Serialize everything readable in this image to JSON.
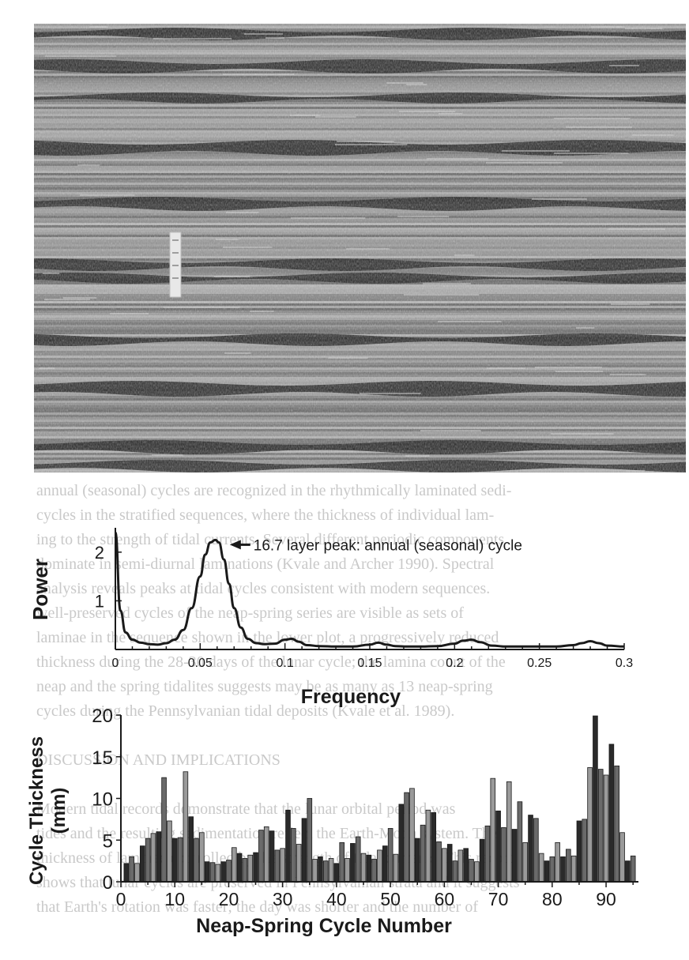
{
  "photo": {
    "description_icon": "laminated-rock-outcrop-photo"
  },
  "background_text": [
    "annual (seasonal) cycles are recognized in the rhythmically laminated sedi-",
    "cycles in the stratified sequences, where the thickness of individual lam-",
    "ing to the strength of tidal currents. Several different periodic components",
    "dominate in semi-diurnal laminations (Kvale and Archer 1990). Spectral",
    "analysis reveals peaks at tidal cycles consistent with modern sequences.",
    "well-preserved cycles of the neap-spring series are visible as sets of",
    "laminae in the sequence shown in the lower plot, a progressively reduced",
    "thickness during the 28-30 days of the lunar cycle; the lamina count of the",
    "neap and the spring tidalites suggests may be as many as 13 neap-spring",
    "cycles during the Pennsylvanian tidal deposits (Kvale et al. 1989).",
    "",
    "DISCUSSION AND IMPLICATIONS",
    "",
    "Modern tidal records demonstrate that the lunar orbital period was",
    "tides and the resulting sedimentation reflect the Earth-Moon system. The",
    "thickness of laminae controlled by the strength of tidal currents. This record",
    "shows that lunar cycles are preserved in Pennsylvanian strata and it suggests",
    "that Earth's rotation was faster; the day was shorter and the number of"
  ],
  "chart_data": [
    {
      "type": "line",
      "title": "",
      "annotation": "16.7 layer peak: annual (seasonal) cycle",
      "annotation_x": 0.06,
      "xlabel": "Frequency",
      "ylabel": "Power",
      "xlim": [
        0,
        0.3
      ],
      "ylim": [
        0,
        2.5
      ],
      "x_ticks": [
        0,
        0.05,
        0.1,
        0.15,
        0.2,
        0.25,
        0.3
      ],
      "x_tick_labels": [
        "0",
        "0.05",
        "0.1",
        "0.15",
        "0.2",
        "0.25",
        "0.3"
      ],
      "y_ticks": [
        1,
        2
      ],
      "y_tick_labels": [
        "1",
        "2"
      ],
      "grid": false,
      "x": [
        0,
        0.003,
        0.006,
        0.01,
        0.015,
        0.02,
        0.025,
        0.03,
        0.035,
        0.04,
        0.045,
        0.05,
        0.053,
        0.056,
        0.059,
        0.061,
        0.064,
        0.067,
        0.07,
        0.074,
        0.078,
        0.083,
        0.088,
        0.094,
        0.1,
        0.104,
        0.108,
        0.113,
        0.12,
        0.13,
        0.14,
        0.15,
        0.155,
        0.16,
        0.165,
        0.172,
        0.18,
        0.19,
        0.2,
        0.205,
        0.21,
        0.215,
        0.222,
        0.23,
        0.24,
        0.25,
        0.26,
        0.27,
        0.275,
        0.28,
        0.285,
        0.29,
        0.3
      ],
      "y": [
        2.4,
        0.8,
        0.35,
        0.2,
        0.14,
        0.11,
        0.1,
        0.13,
        0.2,
        0.4,
        0.85,
        1.5,
        1.95,
        2.2,
        2.25,
        2.2,
        1.85,
        1.35,
        0.85,
        0.45,
        0.22,
        0.13,
        0.11,
        0.12,
        0.2,
        0.22,
        0.16,
        0.09,
        0.07,
        0.06,
        0.06,
        0.1,
        0.14,
        0.1,
        0.07,
        0.06,
        0.06,
        0.07,
        0.12,
        0.18,
        0.2,
        0.15,
        0.08,
        0.06,
        0.06,
        0.06,
        0.06,
        0.09,
        0.13,
        0.17,
        0.13,
        0.08,
        0.06
      ]
    },
    {
      "type": "bar",
      "title": "",
      "xlabel": "Neap-Spring Cycle Number",
      "ylabel": "Cycle Thickness (mm)",
      "ylabel_lines": [
        "Cycle Thickness",
        "(mm)"
      ],
      "xlim": [
        0,
        96
      ],
      "ylim": [
        0,
        20
      ],
      "x_ticks": [
        0,
        10,
        20,
        30,
        40,
        50,
        60,
        70,
        80,
        90
      ],
      "x_tick_labels": [
        "0",
        "10",
        "20",
        "30",
        "40",
        "50",
        "60",
        "70",
        "80",
        "90"
      ],
      "y_ticks": [
        0,
        5,
        10,
        15,
        20
      ],
      "y_tick_labels": [
        "0",
        "5",
        "10",
        "15",
        "20"
      ],
      "grid": false,
      "categories": [
        1,
        2,
        3,
        4,
        5,
        6,
        7,
        8,
        9,
        10,
        11,
        12,
        13,
        14,
        15,
        16,
        17,
        18,
        19,
        20,
        21,
        22,
        23,
        24,
        25,
        26,
        27,
        28,
        29,
        30,
        31,
        32,
        33,
        34,
        35,
        36,
        37,
        38,
        39,
        40,
        41,
        42,
        43,
        44,
        45,
        46,
        47,
        48,
        49,
        50,
        51,
        52,
        53,
        54,
        55,
        56,
        57,
        58,
        59,
        60,
        61,
        62,
        63,
        64,
        65,
        66,
        67,
        68,
        69,
        70,
        71,
        72,
        73,
        74,
        75,
        76,
        77,
        78,
        79,
        80,
        81,
        82,
        83,
        84,
        85,
        86,
        87,
        88,
        89,
        90,
        91,
        92,
        93,
        94,
        95
      ],
      "values": [
        2.2,
        3.0,
        2.2,
        4.3,
        5.2,
        5.8,
        6.0,
        12.5,
        7.3,
        5.2,
        5.3,
        13.2,
        7.8,
        5.2,
        5.9,
        2.4,
        2.3,
        2.1,
        2.4,
        2.6,
        4.1,
        3.4,
        2.8,
        3.2,
        3.5,
        6.2,
        6.6,
        6.1,
        3.8,
        4.0,
        8.6,
        6.4,
        4.5,
        7.6,
        10.0,
        2.7,
        3.0,
        2.5,
        2.8,
        2.2,
        4.7,
        2.8,
        4.6,
        5.4,
        3.4,
        3.2,
        2.7,
        3.8,
        4.3,
        6.4,
        3.3,
        9.3,
        10.7,
        11.2,
        5.2,
        6.8,
        8.6,
        8.3,
        4.8,
        4.0,
        4.5,
        2.5,
        3.8,
        4.0,
        2.7,
        2.4,
        5.1,
        6.7,
        12.4,
        8.5,
        6.5,
        12.0,
        6.3,
        9.6,
        4.7,
        8.0,
        7.6,
        3.4,
        2.5,
        3.0,
        4.7,
        3.0,
        3.9,
        3.1,
        7.3,
        7.5,
        13.7,
        19.9,
        13.5,
        12.8,
        16.5,
        13.9,
        5.9,
        2.5,
        3.1
      ]
    }
  ]
}
